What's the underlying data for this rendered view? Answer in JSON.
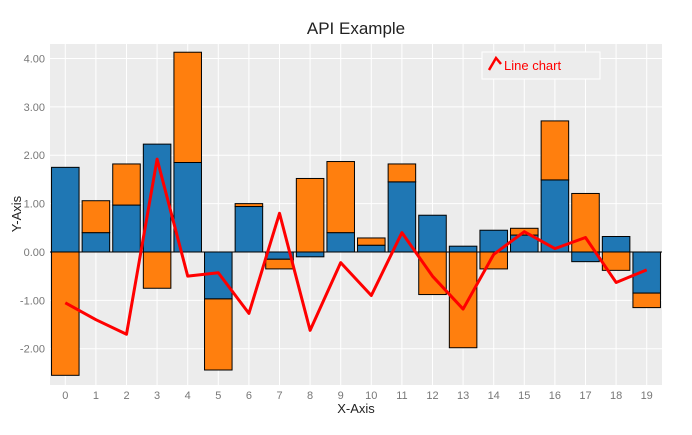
{
  "chart_data": {
    "type": "bar",
    "title": "API Example",
    "xlabel": "X-Axis",
    "ylabel": "Y-Axis",
    "x": [
      0,
      1,
      2,
      3,
      4,
      5,
      6,
      7,
      8,
      9,
      10,
      11,
      12,
      13,
      14,
      15,
      16,
      17,
      18,
      19
    ],
    "ylim": [
      -2.75,
      4.3
    ],
    "yticks": [
      -2.0,
      -1.0,
      0.0,
      1.0,
      2.0,
      3.0,
      4.0
    ],
    "ytick_labels": [
      "-2.00",
      "-1.00",
      "0.00",
      "1.00",
      "2.00",
      "3.00",
      "4.00"
    ],
    "grid": true,
    "stacked": true,
    "series": [
      {
        "kind": "bar",
        "color": "#1f77b4",
        "values": [
          1.75,
          0.4,
          0.97,
          2.23,
          1.85,
          -0.97,
          0.94,
          -0.15,
          -0.1,
          0.4,
          0.14,
          1.45,
          0.76,
          0.12,
          0.45,
          0.35,
          1.49,
          -0.2,
          0.32,
          -0.85
        ]
      },
      {
        "kind": "bar",
        "color": "#ff7f0e",
        "values": [
          -2.55,
          0.66,
          0.85,
          -0.75,
          2.28,
          -1.47,
          0.06,
          -0.2,
          1.52,
          1.47,
          0.15,
          0.37,
          -0.88,
          -1.98,
          -0.35,
          0.14,
          1.22,
          1.21,
          -0.38,
          -0.3
        ]
      },
      {
        "kind": "line",
        "name": "Line chart",
        "color": "#ff0000",
        "values": [
          -1.05,
          -1.4,
          -1.7,
          1.92,
          -0.5,
          -0.43,
          -1.27,
          0.8,
          -1.62,
          -0.22,
          -0.9,
          0.4,
          -0.5,
          -1.18,
          -0.05,
          0.42,
          0.07,
          0.3,
          -0.63,
          -0.37
        ]
      }
    ],
    "legend": {
      "placement": "top-right"
    }
  }
}
